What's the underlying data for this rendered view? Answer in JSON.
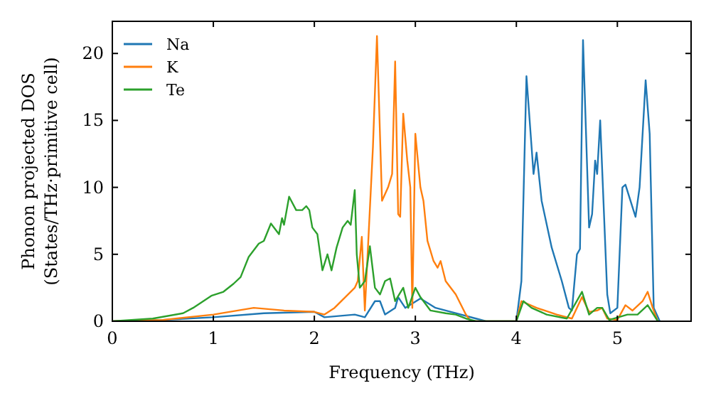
{
  "chart_data": {
    "type": "line",
    "xlabel": "Frequency (THz)",
    "ylabel": "Phonon projected DOS\n(States/THz·primitive cell)",
    "xlim": [
      0,
      5.73
    ],
    "ylim": [
      0,
      22.4
    ],
    "xticks": [
      0,
      1,
      2,
      3,
      4,
      5
    ],
    "yticks": [
      0,
      5,
      10,
      15,
      20
    ],
    "legend": "top left",
    "grid": false,
    "marker": "none",
    "line_style": "solid",
    "series": [
      {
        "name": "Na",
        "color": "#1f77b4",
        "x": [
          0,
          0.5,
          1,
          1.5,
          2,
          2.1,
          2.4,
          2.5,
          2.6,
          2.65,
          2.7,
          2.8,
          2.83,
          2.9,
          3.05,
          3.2,
          3.4,
          3.6,
          3.7,
          4.0,
          4.05,
          4.1,
          4.17,
          4.2,
          4.25,
          4.35,
          4.45,
          4.52,
          4.55,
          4.6,
          4.63,
          4.66,
          4.72,
          4.75,
          4.78,
          4.8,
          4.83,
          4.9,
          4.93,
          5.0,
          5.05,
          5.08,
          5.18,
          5.22,
          5.28,
          5.32,
          5.36,
          5.42
        ],
        "values": [
          0,
          0.1,
          0.3,
          0.6,
          0.7,
          0.3,
          0.5,
          0.3,
          1.5,
          1.5,
          0.5,
          1,
          1.8,
          1,
          1.7,
          1,
          0.6,
          0.2,
          0,
          0,
          3,
          18.3,
          11,
          12.6,
          9,
          5.5,
          3,
          1,
          0.8,
          5,
          5.4,
          21,
          7,
          8,
          12,
          11,
          15,
          2,
          0.6,
          1,
          10,
          10.2,
          7.8,
          10,
          18,
          14,
          1,
          0
        ]
      },
      {
        "name": "K",
        "color": "#ff7f0e",
        "x": [
          0,
          0.5,
          1,
          1.4,
          1.7,
          2.0,
          2.1,
          2.2,
          2.4,
          2.43,
          2.47,
          2.5,
          2.58,
          2.62,
          2.67,
          2.73,
          2.77,
          2.8,
          2.83,
          2.85,
          2.88,
          2.92,
          2.95,
          2.97,
          3.0,
          3.05,
          3.08,
          3.12,
          3.18,
          3.22,
          3.25,
          3.3,
          3.4,
          3.5,
          3.55,
          4.0,
          4.05,
          4.2,
          4.4,
          4.55,
          4.65,
          4.72,
          4.8,
          4.85,
          4.9,
          5.0,
          5.08,
          5.15,
          5.25,
          5.3,
          5.35,
          5.4
        ],
        "values": [
          0,
          0.1,
          0.5,
          1,
          0.8,
          0.7,
          0.5,
          1,
          2.5,
          3,
          6.3,
          0.8,
          13,
          21.3,
          9,
          10,
          11,
          19.4,
          8,
          7.8,
          15.5,
          12,
          10,
          1,
          14,
          10,
          9,
          6,
          4.5,
          4,
          4.5,
          3,
          2,
          0.5,
          0,
          0,
          1.5,
          1,
          0.5,
          0.2,
          1.8,
          0.7,
          0.8,
          1,
          0.2,
          0.1,
          1.2,
          0.8,
          1.5,
          2.2,
          1,
          0
        ]
      },
      {
        "name": "Te",
        "color": "#2ca02c",
        "x": [
          0,
          0.4,
          0.7,
          0.8,
          0.98,
          1.1,
          1.2,
          1.27,
          1.35,
          1.45,
          1.5,
          1.57,
          1.65,
          1.68,
          1.7,
          1.75,
          1.82,
          1.88,
          1.92,
          1.95,
          1.98,
          2.03,
          2.08,
          2.13,
          2.17,
          2.22,
          2.28,
          2.33,
          2.36,
          2.4,
          2.42,
          2.45,
          2.5,
          2.55,
          2.6,
          2.65,
          2.7,
          2.75,
          2.8,
          2.88,
          2.93,
          3.0,
          3.05,
          3.15,
          3.3,
          3.4,
          3.5,
          3.6,
          4.0,
          4.07,
          4.15,
          4.3,
          4.5,
          4.65,
          4.72,
          4.8,
          4.85,
          4.92,
          5.1,
          5.2,
          5.3,
          5.4
        ],
        "values": [
          0,
          0.2,
          0.6,
          1,
          1.9,
          2.2,
          2.8,
          3.3,
          4.8,
          5.8,
          6,
          7.3,
          6.5,
          7.7,
          7.2,
          9.3,
          8.3,
          8.3,
          8.6,
          8.3,
          7,
          6.5,
          3.8,
          5,
          3.8,
          5.5,
          7,
          7.5,
          7.2,
          9.8,
          5,
          2.5,
          3,
          5.6,
          2.5,
          2,
          3,
          3.2,
          1.5,
          2.5,
          1,
          2.5,
          1.8,
          0.8,
          0.6,
          0.5,
          0.2,
          0,
          0,
          1.5,
          1,
          0.5,
          0.2,
          2.2,
          0.5,
          1,
          1,
          0.1,
          0.5,
          0.5,
          1.2,
          0
        ]
      }
    ]
  }
}
